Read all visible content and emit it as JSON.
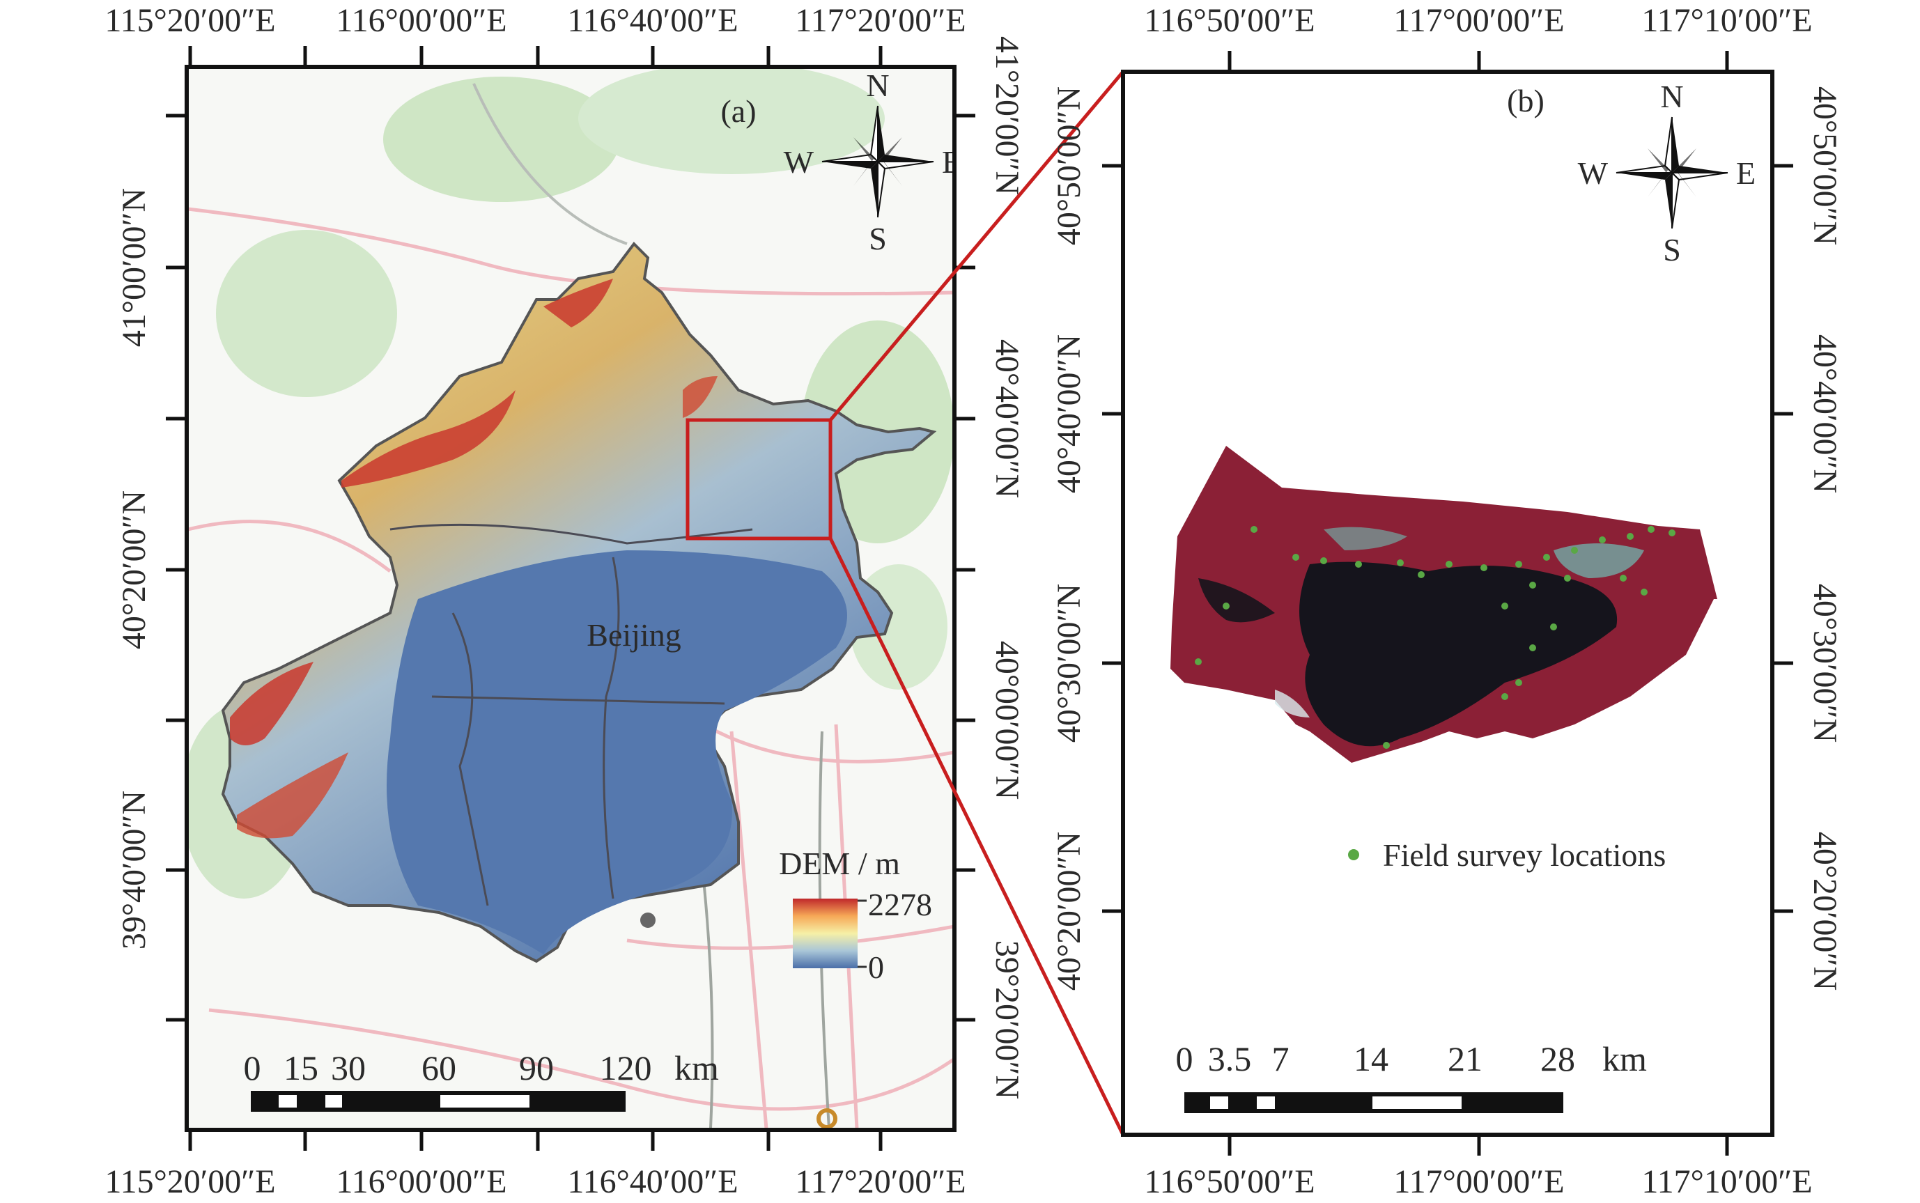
{
  "panel_a": {
    "label": "(a)",
    "place_label": "Beijing",
    "top_lon_labels": [
      "115°20′00″E",
      "116°00′00″E",
      "116°40′00″E",
      "117°20′00″E"
    ],
    "bottom_lon_labels": [
      "115°20′00″E",
      "116°00′00″E",
      "116°40′00″E",
      "117°20′00″E"
    ],
    "left_lat_labels": [
      "41°00′00″N",
      "40°20′00″N",
      "39°40′00″N"
    ],
    "right_lat_labels": [
      "41°20′00″N",
      "40°40′00″N",
      "40°00′00″N",
      "39°20′00″N"
    ],
    "compass": {
      "n": "N",
      "s": "S",
      "e": "E",
      "w": "W"
    },
    "legend": {
      "title": "DEM / m",
      "max": "2278",
      "min": "0",
      "colors": [
        "#c0282b",
        "#f6a857",
        "#f6f0a6",
        "#a9c6d8",
        "#4a6ea8"
      ]
    },
    "scale_bar": {
      "labels": [
        "0",
        "15",
        "30",
        "60",
        "90",
        "120"
      ],
      "unit": "km"
    }
  },
  "panel_b": {
    "label": "(b)",
    "top_lon_labels": [
      "116°50′00″E",
      "117°00′00″E",
      "117°10′00″E"
    ],
    "bottom_lon_labels": [
      "116°50′00″E",
      "117°00′00″E",
      "117°10′00″E"
    ],
    "left_lat_labels": [
      "40°50′00″N",
      "40°40′00″N",
      "40°30′00″N",
      "40°20′00″N"
    ],
    "right_lat_labels": [
      "40°50′00″N",
      "40°40′00″N",
      "40°30′00″N",
      "40°20′00″N"
    ],
    "compass": {
      "n": "N",
      "s": "S",
      "e": "E",
      "w": "W"
    },
    "legend": {
      "label": "Field survey locations",
      "point_color": "#5aa845"
    },
    "scale_bar": {
      "labels": [
        "0",
        "3.5",
        "7",
        "14",
        "21",
        "28"
      ],
      "unit": "km"
    }
  },
  "colors": {
    "inset_box": "#c81e1e",
    "imagery_red": "#8b2036",
    "imagery_dark": "#15141c",
    "imagery_cyan": "#6fbfb6"
  }
}
